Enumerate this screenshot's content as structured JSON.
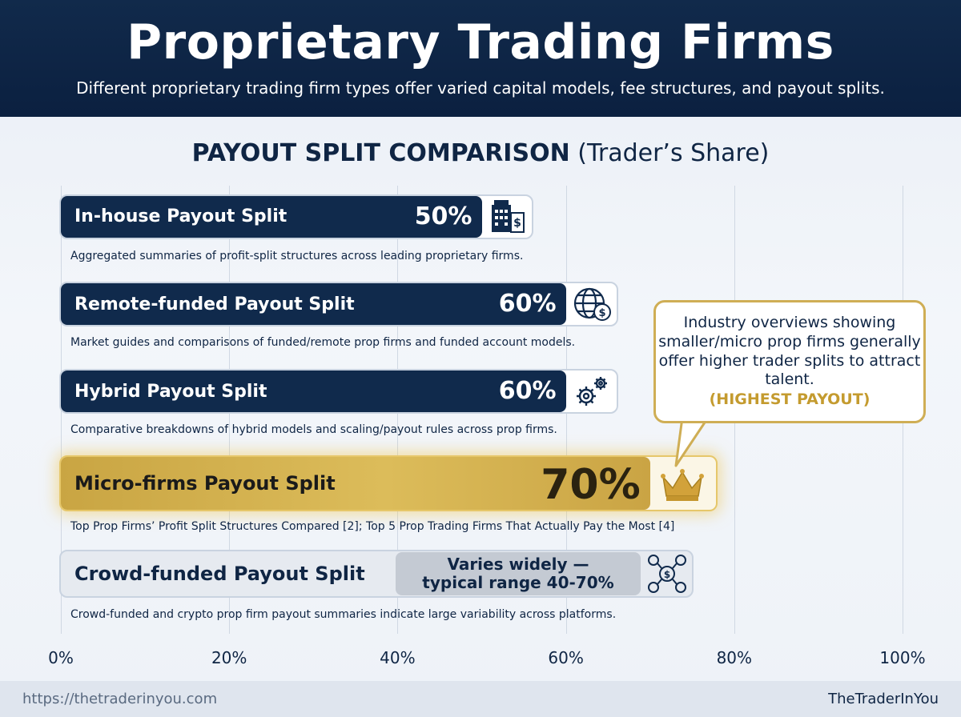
{
  "header": {
    "title": "Proprietary Trading Firms",
    "subtitle": "Different proprietary trading firm types offer varied capital models, fee structures, and payout splits."
  },
  "section": {
    "title_bold": "PAYOUT SPLIT COMPARISON",
    "title_normal": "(Trader’s Share)"
  },
  "chart_data": {
    "type": "bar",
    "orientation": "horizontal",
    "title": "PAYOUT SPLIT COMPARISON (Trader’s Share)",
    "xlim": [
      0,
      100
    ],
    "x_ticks": [
      "0%",
      "20%",
      "40%",
      "60%",
      "80%",
      "100%"
    ],
    "grid": true,
    "categories": [
      "In-house Payout Split",
      "Remote-funded Payout Split",
      "Hybrid Payout Split",
      "Micro-firms Payout Split",
      "Crowd-funded Payout Split"
    ],
    "values": [
      50,
      60,
      60,
      70,
      null
    ],
    "value_labels": [
      "50%",
      "60%",
      "60%",
      "70%",
      "Varies widely — typical range 40-70%"
    ],
    "crowd_range": [
      40,
      70
    ],
    "descriptions": [
      "Aggregated summaries of profit-split structures across leading proprietary firms.",
      "Market guides and comparisons of funded/remote prop firms and funded account models.",
      "Comparative breakdowns of hybrid models and scaling/payout rules across prop firms.",
      "Top Prop Firms’ Profit Split Structures Compared [2]; Top 5 Prop Trading Firms That Actually Pay the Most [4]",
      "Crowd-funded and crypto prop firm payout summaries indicate large variability across platforms."
    ],
    "crowd_line1": "Varies widely —",
    "crowd_line2": "typical range 40-70%",
    "highlight_index": 3,
    "colors": {
      "bar": "#102a4c",
      "highlight": "#d4b24f",
      "range": "#c4cad3",
      "accent": "#c49b2f"
    }
  },
  "icons": [
    "building-dollar-icon",
    "globe-dollar-icon",
    "gears-icon",
    "crown-icon",
    "crowd-network-icon"
  ],
  "callout": {
    "text": "Industry overviews showing smaller/micro prop firms generally offer higher trader splits to attract talent.",
    "highlight": "(HIGHEST PAYOUT)"
  },
  "footer": {
    "url": "https://thetraderinyou.com",
    "brand": "TheTraderInYou"
  }
}
